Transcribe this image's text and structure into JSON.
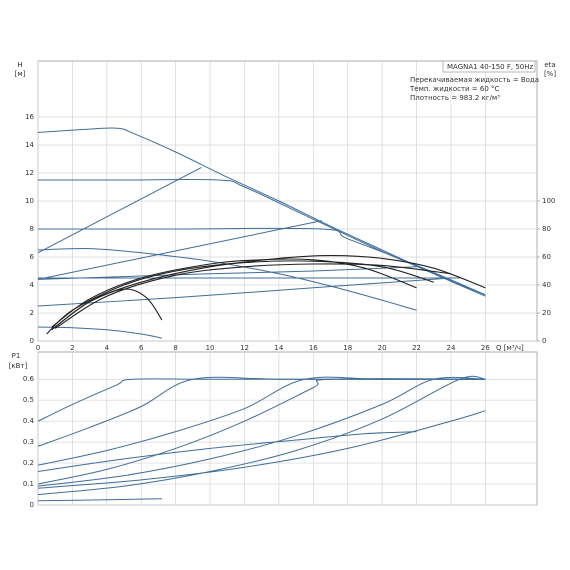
{
  "chart_data": [
    {
      "type": "line",
      "info": [
        "MAGNA1 40-150 F, 50Hz",
        "Перекачиваемая жидкость = Вода",
        "Темп. жидкости = 60 °C",
        "Плотность = 983.2 кг/м³"
      ],
      "ylabel": [
        "H",
        "[м]"
      ],
      "y2label": [
        "eta",
        "[%]"
      ],
      "xlabel": "Q [м³/ч]",
      "xlim": [
        0,
        29
      ],
      "xticks": [
        0,
        2,
        4,
        6,
        8,
        10,
        12,
        14,
        16,
        18,
        20,
        22,
        24,
        26
      ],
      "ylim": [
        0,
        20
      ],
      "yticks": [
        0,
        2,
        4,
        6,
        8,
        10,
        12,
        14,
        16
      ],
      "y2lim": [
        0,
        200
      ],
      "y2ticks": [
        0,
        20,
        40,
        60,
        80,
        100
      ],
      "grid": true,
      "series": [
        {
          "color": "#3f6d99",
          "x": [
            0,
            2.5,
            4.6,
            5.6,
            8,
            11,
            14,
            17,
            20,
            23,
            26
          ],
          "values": [
            14.9,
            15.1,
            15.2,
            14.8,
            13.5,
            11.7,
            10,
            8.2,
            6.5,
            4.8,
            3.2
          ]
        },
        {
          "color": "#3f6d99",
          "x": [
            0,
            5,
            10.5,
            12,
            16,
            20,
            24,
            26
          ],
          "values": [
            11.5,
            11.5,
            11.5,
            11,
            8.7,
            6.4,
            4.3,
            3.3
          ]
        },
        {
          "color": "#3f6d99",
          "x": [
            0,
            8,
            16.5,
            18,
            22,
            26
          ],
          "values": [
            8,
            8,
            8,
            7.3,
            5.4,
            3.3
          ]
        },
        {
          "color": "#3f6d99",
          "x": [
            0,
            24.5
          ],
          "values": [
            4.5,
            4.5
          ]
        },
        {
          "color": "#3f6d99",
          "x": [
            0,
            9.5
          ],
          "values": [
            6.3,
            12.4
          ]
        },
        {
          "color": "#3f6d99",
          "x": [
            0,
            16.5
          ],
          "values": [
            4.4,
            8.6
          ]
        },
        {
          "color": "#3f6d99",
          "x": [
            0,
            8,
            16,
            24
          ],
          "values": [
            2.5,
            3.1,
            3.8,
            4.5
          ]
        },
        {
          "color": "#3f6d99",
          "x": [
            0,
            3,
            6,
            10,
            14,
            18,
            22
          ],
          "values": [
            6.5,
            6.6,
            6.3,
            5.7,
            4.8,
            3.6,
            2.2
          ]
        },
        {
          "color": "#3f6d99",
          "x": [
            0,
            2,
            4,
            6,
            7.2
          ],
          "values": [
            1,
            0.95,
            0.8,
            0.5,
            0.2
          ]
        },
        {
          "color": "#3f6d99",
          "x": [
            0,
            5,
            10,
            16,
            22
          ],
          "values": [
            4.4,
            4.6,
            4.8,
            5,
            5.3
          ]
        },
        {
          "color": "#222222",
          "axis": "y2",
          "x": [
            0.8,
            3,
            6,
            10,
            14,
            17,
            20,
            23,
            26
          ],
          "values": [
            8,
            28,
            42,
            53,
            59,
            61,
            59,
            52,
            38
          ]
        },
        {
          "color": "#222222",
          "axis": "y2",
          "x": [
            0.8,
            3,
            6,
            10,
            13,
            16,
            19,
            22
          ],
          "values": [
            10,
            30,
            45,
            55,
            58,
            58,
            52,
            38
          ]
        },
        {
          "color": "#222222",
          "axis": "y2",
          "x": [
            0.5,
            2,
            5,
            8,
            12,
            16,
            20,
            23
          ],
          "values": [
            5,
            22,
            40,
            50,
            56,
            57,
            53,
            42
          ]
        },
        {
          "color": "#222222",
          "axis": "y2",
          "x": [
            1,
            4,
            8,
            12,
            16,
            20,
            24
          ],
          "values": [
            9,
            32,
            47,
            53,
            55,
            54,
            48
          ]
        },
        {
          "color": "#222222",
          "axis": "y2",
          "x": [
            1,
            3,
            5,
            6.3,
            7.2
          ],
          "values": [
            10,
            28,
            37,
            31,
            15
          ]
        }
      ]
    },
    {
      "type": "line",
      "ylabel": [
        "P1",
        "[кВт]"
      ],
      "xlim": [
        0,
        29
      ],
      "ylim": [
        0,
        0.73
      ],
      "yticks": [
        0,
        0.1,
        0.2,
        0.3,
        0.4,
        0.5,
        0.6
      ],
      "grid": true,
      "series": [
        {
          "color": "#3f6d99",
          "x": [
            0,
            2,
            4.5,
            5.5,
            10,
            18,
            26
          ],
          "values": [
            0.4,
            0.48,
            0.57,
            0.6,
            0.6,
            0.6,
            0.6
          ]
        },
        {
          "color": "#3f6d99",
          "x": [
            0,
            3,
            6,
            9,
            14,
            20,
            26
          ],
          "values": [
            0.28,
            0.37,
            0.47,
            0.6,
            0.6,
            0.6,
            0.6
          ]
        },
        {
          "color": "#3f6d99",
          "x": [
            0,
            4,
            8,
            12,
            15.5,
            20,
            26
          ],
          "values": [
            0.19,
            0.26,
            0.35,
            0.46,
            0.6,
            0.6,
            0.6
          ]
        },
        {
          "color": "#3f6d99",
          "x": [
            0,
            4,
            8,
            12,
            16,
            17,
            26
          ],
          "values": [
            0.1,
            0.17,
            0.27,
            0.4,
            0.56,
            0.6,
            0.6
          ]
        },
        {
          "color": "#3f6d99",
          "x": [
            0,
            5,
            10,
            15,
            20,
            23,
            26
          ],
          "values": [
            0.09,
            0.14,
            0.22,
            0.33,
            0.48,
            0.6,
            0.6
          ]
        },
        {
          "color": "#3f6d99",
          "x": [
            0,
            5,
            10,
            15,
            20,
            24.5,
            26
          ],
          "values": [
            0.05,
            0.09,
            0.16,
            0.26,
            0.41,
            0.6,
            0.6
          ]
        },
        {
          "color": "#3f6d99",
          "x": [
            0,
            5,
            10,
            15,
            19,
            22
          ],
          "values": [
            0.16,
            0.22,
            0.27,
            0.31,
            0.34,
            0.35
          ]
        },
        {
          "color": "#3f6d99",
          "x": [
            0,
            4,
            7.2
          ],
          "values": [
            0.02,
            0.025,
            0.03
          ]
        },
        {
          "color": "#3f6d99",
          "x": [
            0,
            6,
            12,
            18,
            24,
            26
          ],
          "values": [
            0.08,
            0.12,
            0.18,
            0.27,
            0.4,
            0.45
          ]
        }
      ]
    }
  ]
}
